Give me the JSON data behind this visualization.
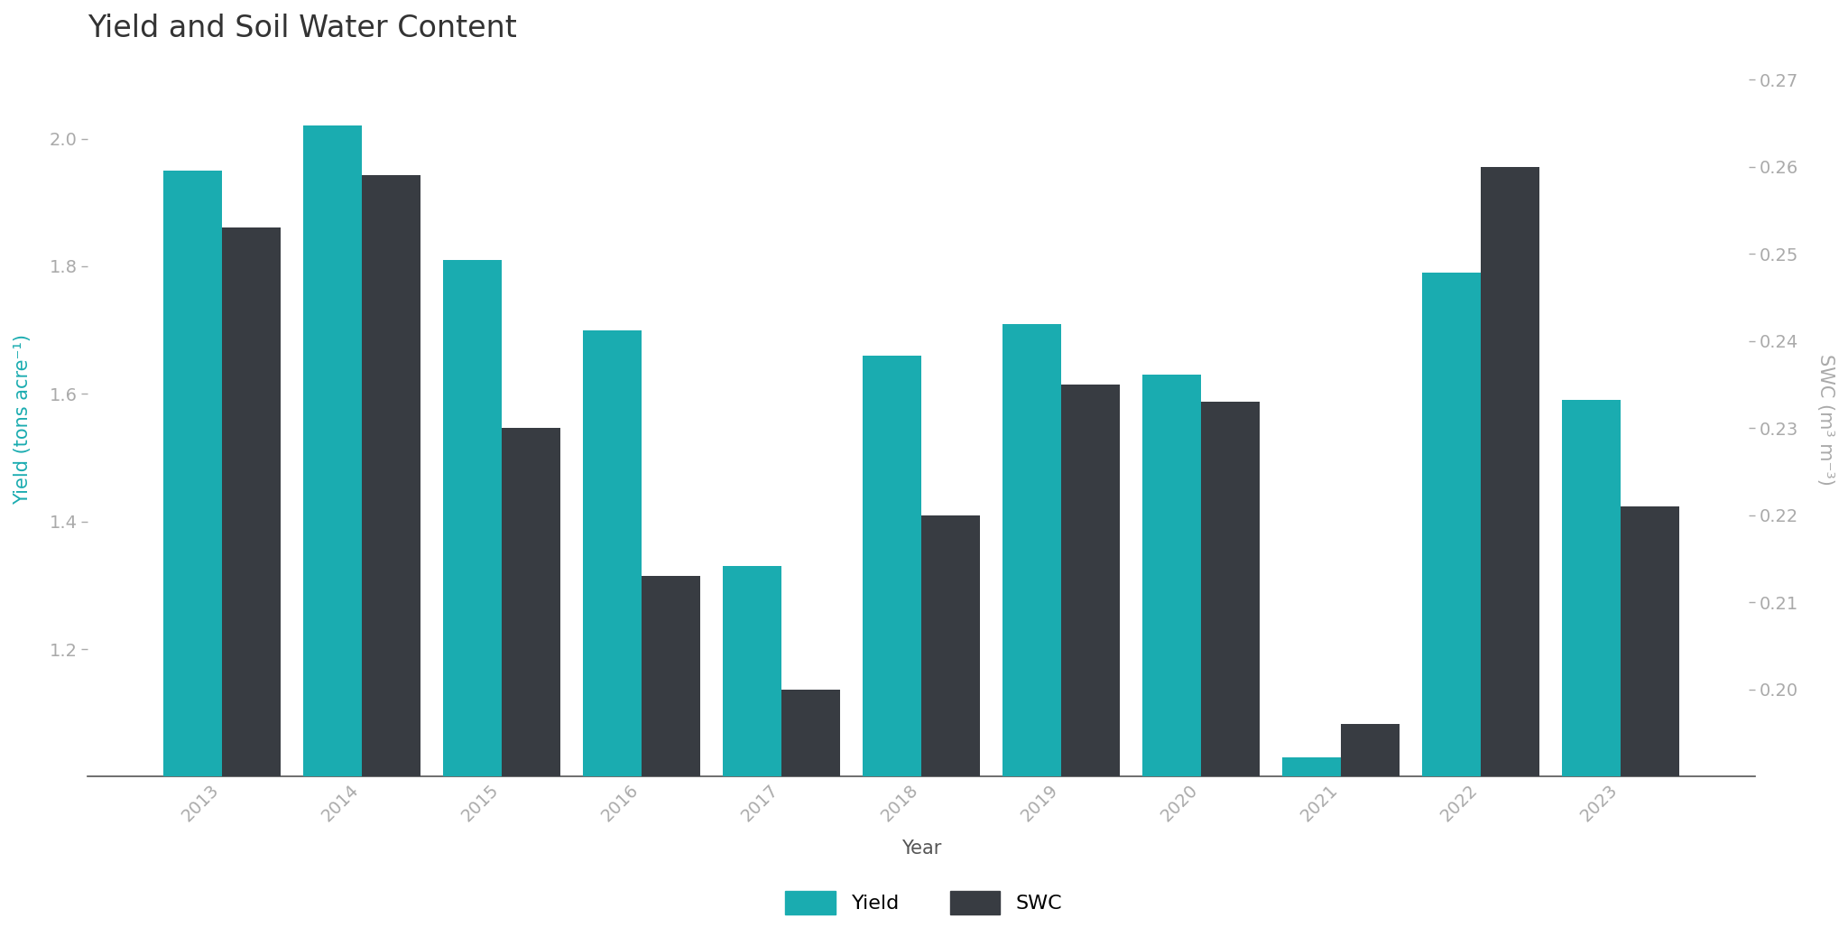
{
  "title": "Yield and Soil Water Content",
  "years": [
    2013,
    2014,
    2015,
    2016,
    2017,
    2018,
    2019,
    2020,
    2021,
    2022,
    2023
  ],
  "yield_values": [
    1.95,
    2.02,
    1.81,
    1.7,
    1.33,
    1.66,
    1.71,
    1.63,
    1.03,
    1.79,
    1.59
  ],
  "swc_values": [
    0.253,
    0.259,
    0.23,
    0.213,
    0.2,
    0.22,
    0.235,
    0.233,
    0.196,
    0.26,
    0.221
  ],
  "yield_color": "#1AACB0",
  "swc_color": "#383C42",
  "ylabel_left": "Yield (tons acre⁻¹)",
  "ylabel_right": "SWC (m³ m⁻³)",
  "xlabel": "Year",
  "ylim_left": [
    1.0,
    2.12
  ],
  "ylim_right": [
    0.19,
    0.272
  ],
  "yticks_left": [
    1.2,
    1.4,
    1.6,
    1.8,
    2.0
  ],
  "yticks_right": [
    0.2,
    0.21,
    0.22,
    0.23,
    0.24,
    0.25,
    0.26,
    0.27
  ],
  "background_color": "#ffffff",
  "title_fontsize": 24,
  "label_fontsize": 15,
  "tick_fontsize": 14,
  "legend_fontsize": 16,
  "yield_label_color": "#1AACB0",
  "swc_label_color": "#aaaaaa",
  "bar_width": 0.42,
  "tick_label_color": "#aaaaaa"
}
